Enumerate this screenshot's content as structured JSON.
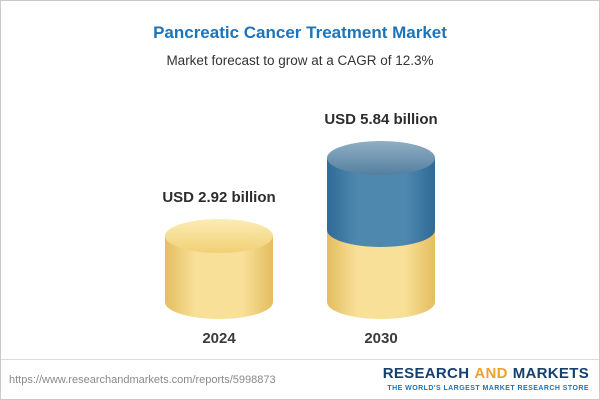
{
  "header": {
    "title": "Pancreatic Cancer Treatment Market",
    "subtitle": "Market forecast to grow at a CAGR of 12.3%"
  },
  "chart_data": {
    "type": "bar",
    "variant": "3d-cylinder",
    "title": "Pancreatic Cancer Treatment Market",
    "subtitle": "Market forecast to grow at a CAGR of 12.3%",
    "categories": [
      "2024",
      "2030"
    ],
    "values": [
      2.92,
      5.84
    ],
    "unit": "USD billion",
    "value_labels": [
      "USD 2.92 billion",
      "USD 5.84 billion"
    ],
    "cagr_percent": 12.3,
    "legend": "none",
    "grid": "off",
    "colors": {
      "base_segment": "#f5d87c",
      "growth_segment": "#3d7aa5",
      "title_text": "#1e74b8"
    },
    "notes": "2030 cylinder is stacked: lower half yellow (matching 2024 base value), upper half blue (forecast growth)"
  },
  "footer": {
    "url": "https://www.researchandmarkets.com/reports/5998873",
    "logo": {
      "word1": "RESEARCH",
      "word2": "AND",
      "word3": "MARKETS",
      "tagline": "THE WORLD'S LARGEST MARKET RESEARCH STORE"
    }
  }
}
